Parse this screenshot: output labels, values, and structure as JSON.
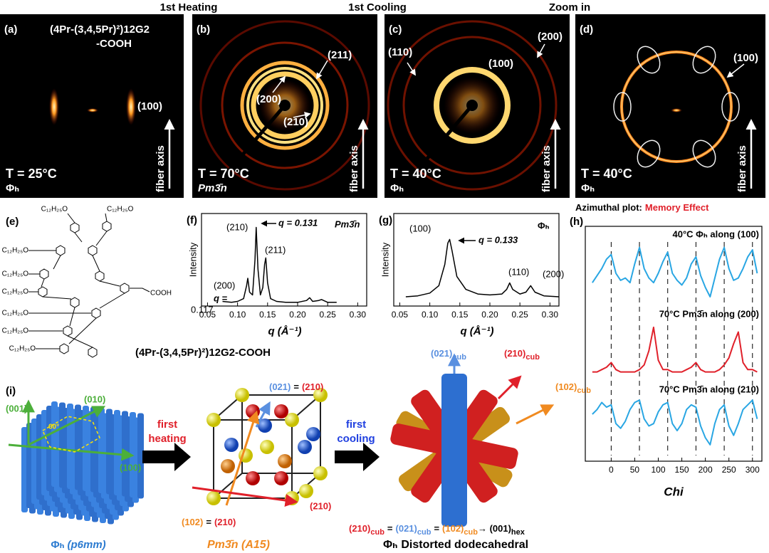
{
  "headers": {
    "heating": "1st Heating",
    "cooling": "1st Cooling",
    "zoom": "Zoom in",
    "azimuthal": "Azimuthal plot:",
    "memory": "Memory Effect"
  },
  "panel_a": {
    "label": "(a)",
    "compound": [
      "(4Pr-(3,4,5Pr)²)12G2",
      "-COOH"
    ],
    "peak": "(100)",
    "temperature": "T = 25°C",
    "phase": "Φₕ",
    "axis": "fiber axis"
  },
  "panel_b": {
    "label": "(b)",
    "peaks": [
      "(211)",
      "(200)",
      "(210)"
    ],
    "temperature": "T = 70°C",
    "phase": "Pm3̄n",
    "axis": "fiber axis"
  },
  "panel_c": {
    "label": "(c)",
    "peaks": [
      "(110)",
      "(200)",
      "(100)"
    ],
    "temperature": "T = 40°C",
    "phase": "Φₕ",
    "axis": "fiber axis"
  },
  "panel_d": {
    "label": "(d)",
    "peak": "(100)",
    "temperature": "T = 40°C",
    "phase": "Φₕ",
    "axis": "fiber axis"
  },
  "panel_e": {
    "label": "(e)",
    "substituents": [
      "C₁₂H₂₅O",
      "C₁₂H₂₅O",
      "C₁₂H₂₅O",
      "C₁₂H₂₅O",
      "C₁₂H₂₅O",
      "C₁₂H₂₅O",
      "C₁₂H₂₅O",
      "C₁₂H₂₅O"
    ],
    "acid": "COOH",
    "caption": "(4Pr-(3,4,5Pr)²)12G2-COOH"
  },
  "chart_data": [
    {
      "type": "line",
      "panel_label": "(f)",
      "y_label": "Intensity",
      "x_label": "q (Å⁻¹)",
      "color": "#000000",
      "x": [
        0.075,
        0.09,
        0.1,
        0.11,
        0.115,
        0.117,
        0.12,
        0.125,
        0.129,
        0.131,
        0.134,
        0.138,
        0.142,
        0.145,
        0.147,
        0.15,
        0.155,
        0.165,
        0.18,
        0.2,
        0.215,
        0.22,
        0.225,
        0.235,
        0.24,
        0.25,
        0.265
      ],
      "values": [
        5,
        4,
        5,
        8,
        22,
        30,
        15,
        12,
        50,
        85,
        40,
        12,
        20,
        45,
        52,
        25,
        8,
        5,
        4,
        4,
        6,
        9,
        5,
        6,
        7,
        4,
        4
      ],
      "xlim": [
        0.04,
        0.315
      ],
      "ylim": [
        0,
        100
      ],
      "xticks": [
        0.05,
        {
          "value": 0.1,
          "label": "0.10"
        },
        0.15,
        {
          "value": 0.2,
          "label": "0.20"
        },
        0.25,
        {
          "value": 0.3,
          "label": "0.30"
        }
      ],
      "annotations": [
        "(210)",
        "q = 0.131",
        "Pm3̄n",
        "(211)",
        "(200)",
        "q =",
        "0.117"
      ]
    },
    {
      "type": "line",
      "panel_label": "(g)",
      "y_label": "Intensity",
      "x_label": "q (Å⁻¹)",
      "color": "#000000",
      "x": [
        0.06,
        0.08,
        0.1,
        0.115,
        0.125,
        0.13,
        0.133,
        0.137,
        0.145,
        0.16,
        0.18,
        0.2,
        0.22,
        0.228,
        0.233,
        0.238,
        0.25,
        0.26,
        0.268,
        0.275,
        0.29,
        0.315
      ],
      "values": [
        10,
        11,
        14,
        22,
        45,
        68,
        72,
        60,
        32,
        18,
        13,
        12,
        13,
        18,
        25,
        18,
        13,
        15,
        22,
        15,
        11,
        10
      ],
      "xlim": [
        0.04,
        0.315
      ],
      "ylim": [
        0,
        100
      ],
      "xticks": [
        0.05,
        {
          "value": 0.1,
          "label": "0.10"
        },
        0.15,
        {
          "value": 0.2,
          "label": "0.20"
        },
        0.25,
        {
          "value": 0.3,
          "label": "0.30"
        }
      ],
      "annotations": [
        "(100)",
        "q = 0.133",
        "Φₕ",
        "(110)",
        "(200)"
      ]
    },
    {
      "type": "line",
      "panel_label": "(h)",
      "x_label": "Chi",
      "x": [
        -40,
        -30,
        -20,
        -10,
        0,
        10,
        20,
        30,
        40,
        50,
        60,
        70,
        80,
        90,
        100,
        110,
        120,
        130,
        140,
        150,
        160,
        170,
        180,
        190,
        200,
        210,
        220,
        230,
        240,
        250,
        260,
        270,
        280,
        290,
        300,
        310
      ],
      "series": [
        {
          "name": "40°C Φₕ along (100)",
          "color": "#29a6e3",
          "values": [
            76,
            79,
            82,
            86,
            88,
            80,
            77,
            78,
            76,
            84,
            91,
            82,
            78,
            76,
            80,
            85,
            89,
            80,
            77,
            75,
            78,
            84,
            87,
            79,
            74,
            70,
            78,
            86,
            91,
            82,
            77,
            78,
            82,
            87,
            90,
            80
          ]
        },
        {
          "name": "70°C Pm3̄n along (200)",
          "color": "#e0202a",
          "values": [
            38,
            38,
            39,
            40,
            42,
            39,
            38,
            38,
            38,
            38,
            39,
            41,
            47,
            57,
            43,
            39,
            39,
            38,
            38,
            38,
            39,
            40,
            42,
            39,
            38,
            38,
            38,
            39,
            41,
            44,
            50,
            55,
            42,
            39,
            39,
            38
          ]
        },
        {
          "name": "70°C Pm3̄n along (210)",
          "color": "#29a6e3",
          "values": [
            20,
            22,
            25,
            23,
            24,
            16,
            14,
            17,
            22,
            25,
            26,
            18,
            15,
            16,
            21,
            24,
            25,
            16,
            13,
            16,
            22,
            24,
            23,
            15,
            10,
            7,
            16,
            22,
            24,
            15,
            11,
            16,
            22,
            24,
            26,
            18
          ]
        }
      ],
      "xlim": [
        -55,
        320
      ],
      "ylim": [
        0,
        100
      ],
      "xticks": [
        0,
        50,
        100,
        150,
        200,
        250,
        300
      ],
      "reference_lines": [
        0,
        60,
        120,
        180,
        240,
        300
      ]
    }
  ],
  "panel_i": {
    "label": "(i)",
    "hex_axes": [
      "(001)",
      "(010)",
      "(100)"
    ],
    "angle": "60°",
    "hex_phase": [
      "Φₕ",
      "(p6mm)"
    ],
    "step1": [
      "first",
      "heating"
    ],
    "cell_top": [
      "(021)",
      "=",
      "(210)"
    ],
    "cell_bottom": [
      "(102)",
      "=",
      "(210)"
    ],
    "cell_right": "(210)",
    "cell_phase": "Pm3̄n (A15)",
    "step2": [
      "first",
      "cooling"
    ],
    "rods": [
      [
        "(021)",
        "cub"
      ],
      [
        "(210)",
        "cub"
      ],
      [
        "(102)",
        "cub"
      ]
    ],
    "equation": [
      "(210)",
      "cub",
      "=",
      "(021)",
      "cub",
      "=",
      "(102)",
      "cub",
      "→ (001)",
      "hex"
    ],
    "rod_phase": [
      "Φₕ",
      "Distorted dodecahedral"
    ]
  }
}
